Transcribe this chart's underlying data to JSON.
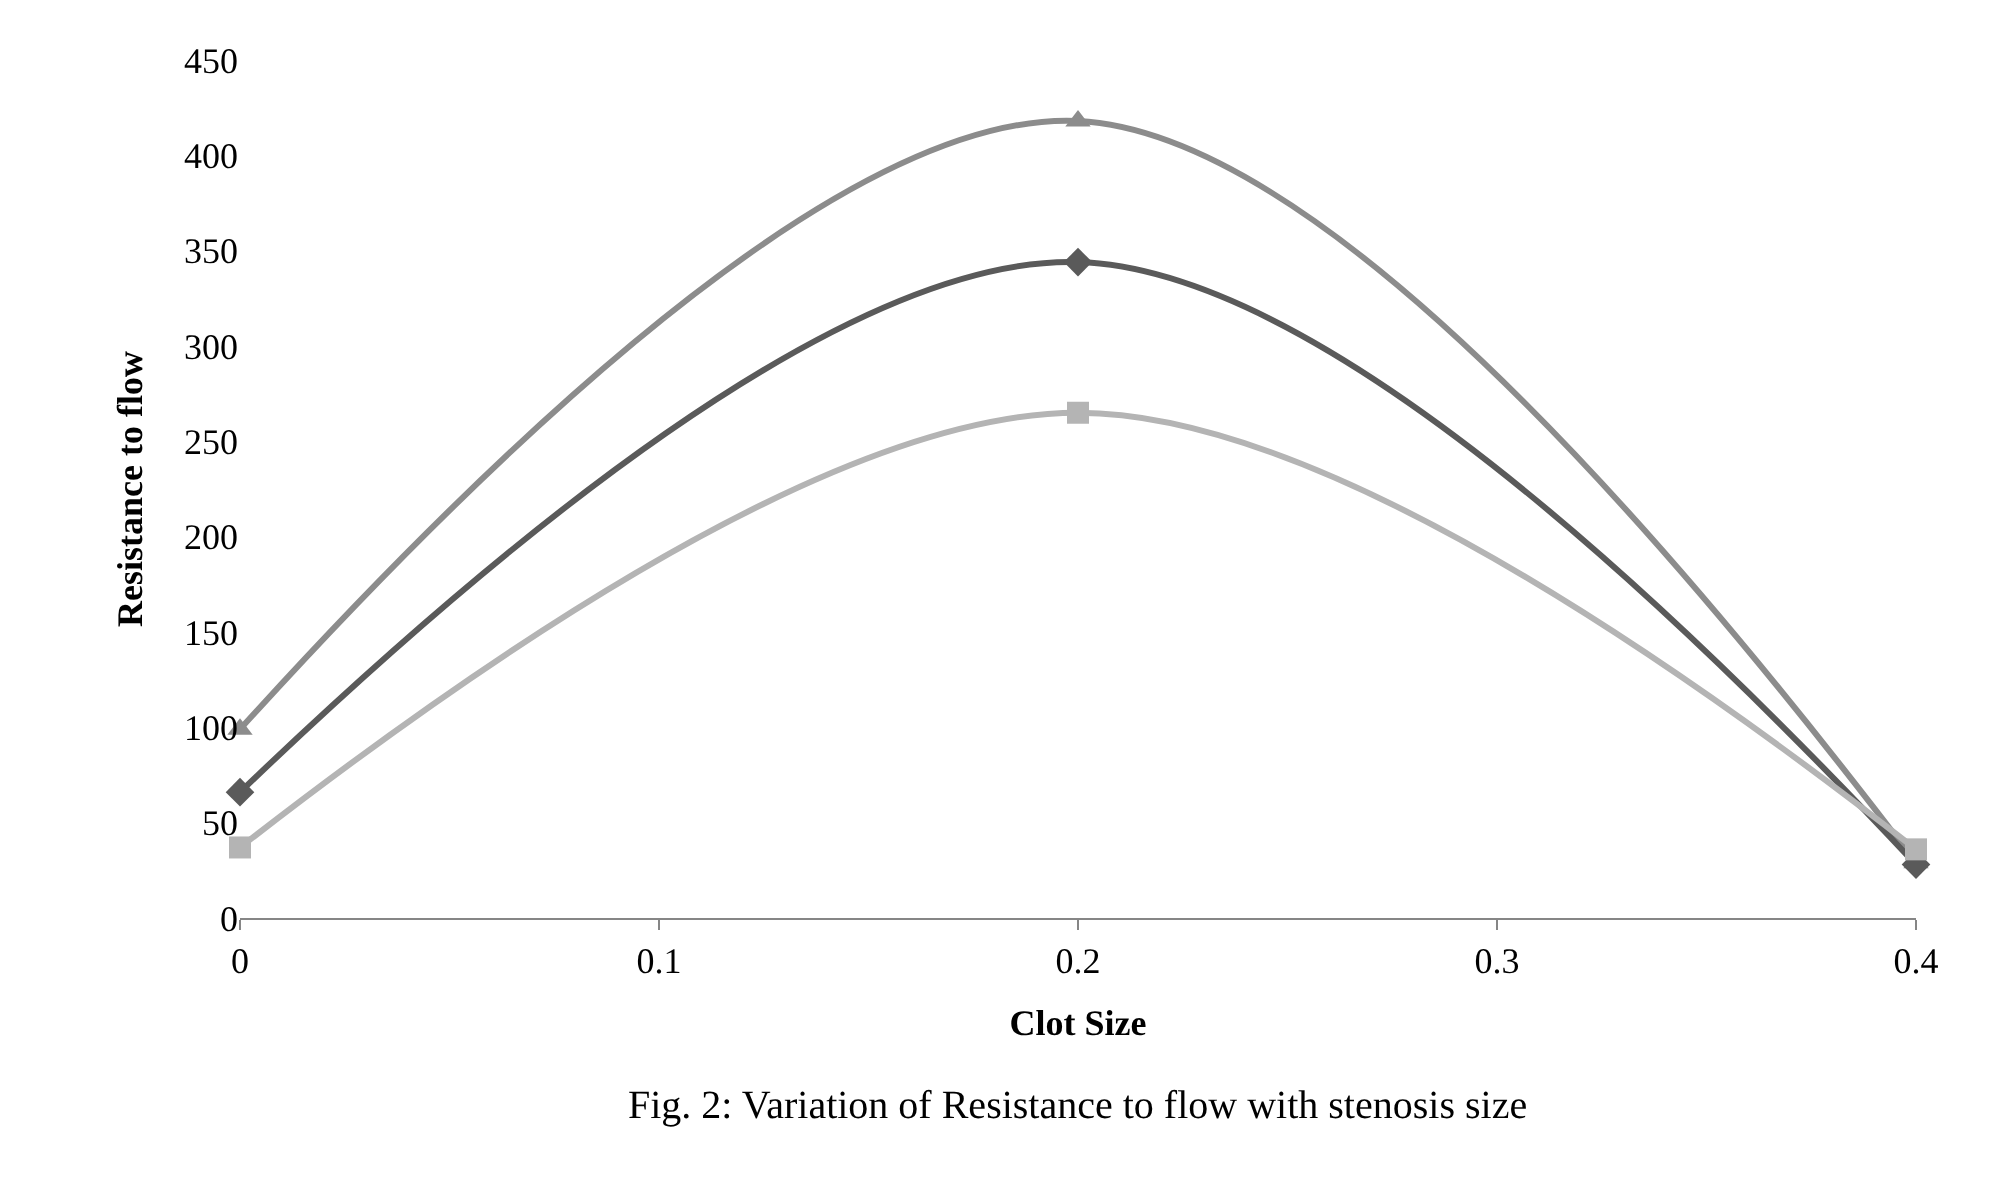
{
  "chart_data": {
    "type": "line",
    "xlabel": "Clot Size",
    "ylabel": "Resistance to flow",
    "x": [
      0,
      0.2,
      0.4
    ],
    "series": [
      {
        "color": "#8c8c8c",
        "values": [
          99,
          418,
          29
        ],
        "marker": "triangle"
      },
      {
        "color": "#5a5a5a",
        "values": [
          66,
          344,
          28
        ],
        "marker": "diamond"
      },
      {
        "color": "#b4b4b4",
        "values": [
          37,
          265,
          36
        ],
        "marker": "square"
      }
    ],
    "xlim": [
      0,
      0.4
    ],
    "xticks": [
      0,
      0.1,
      0.2,
      0.3,
      0.4
    ],
    "ylim": [
      0,
      450
    ],
    "yticks": [
      0,
      50,
      100,
      150,
      200,
      250,
      300,
      350,
      400,
      450
    ],
    "grid": false,
    "legend": false,
    "annotations": [
      "Fig. 2: Variation of Resistance to flow with stenosis size"
    ]
  }
}
